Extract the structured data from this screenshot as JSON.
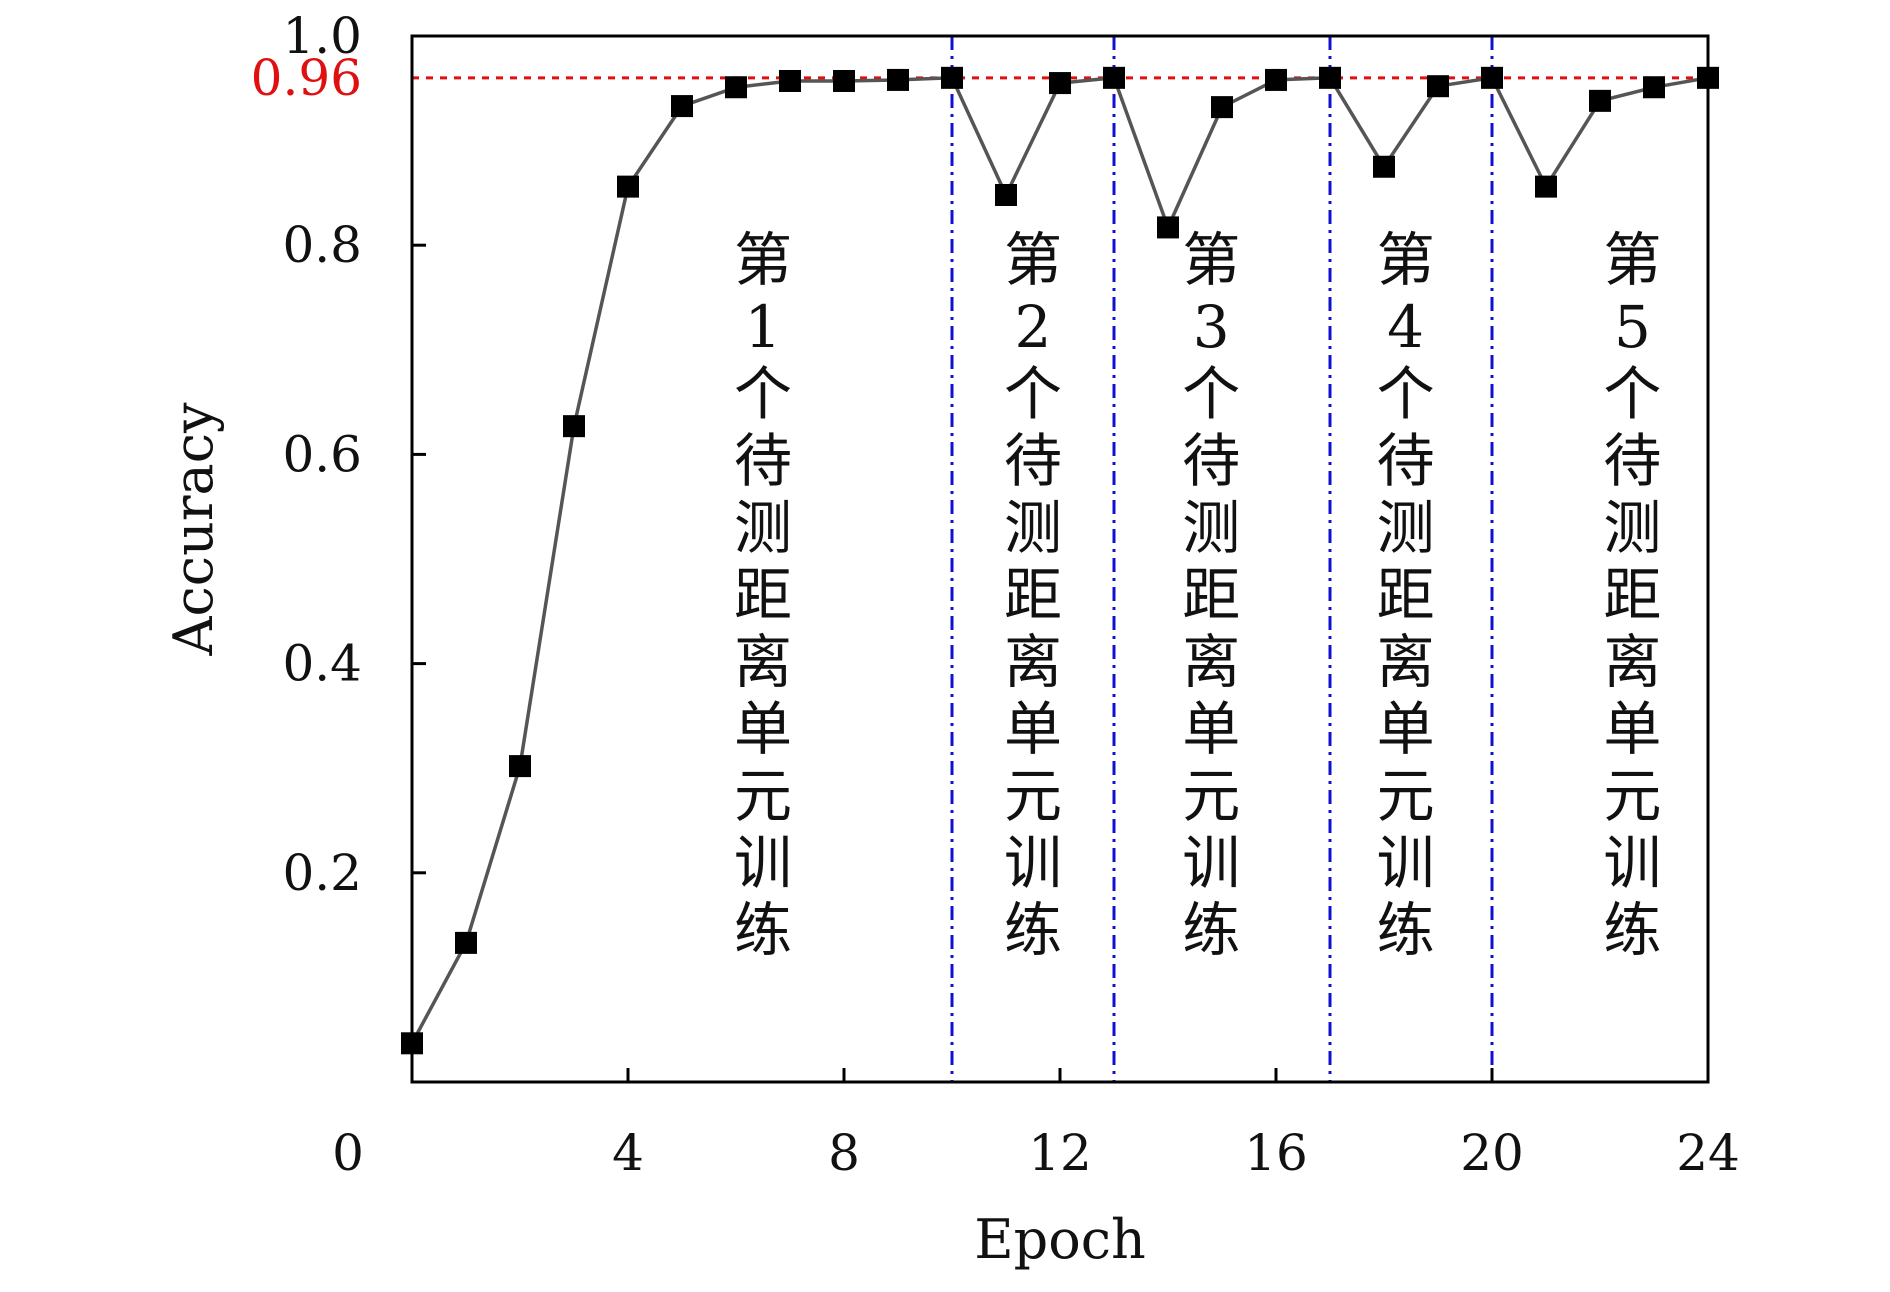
{
  "chart_data": {
    "type": "line",
    "xlabel": "Epoch",
    "ylabel": "Accuracy",
    "xlim": [
      0,
      24
    ],
    "ylim": [
      0,
      1.0
    ],
    "x_ticks": [
      "0",
      "4",
      "8",
      "12",
      "16",
      "20",
      "24"
    ],
    "y_ticks": [
      "0.2",
      "0.4",
      "0.6",
      "0.8",
      "1.0"
    ],
    "series": [
      {
        "marker": "square",
        "line_color": "#555555",
        "marker_color": "#000000",
        "x": [
          0,
          1,
          2,
          3,
          4,
          5,
          6,
          7,
          8,
          9,
          10,
          11,
          12,
          13,
          14,
          15,
          16,
          17,
          18,
          19,
          20,
          21,
          22,
          23,
          24
        ],
        "y": [
          0.037,
          0.133,
          0.302,
          0.627,
          0.856,
          0.933,
          0.951,
          0.957,
          0.957,
          0.958,
          0.96,
          0.848,
          0.955,
          0.96,
          0.817,
          0.932,
          0.958,
          0.96,
          0.875,
          0.952,
          0.96,
          0.856,
          0.938,
          0.951,
          0.96
        ]
      }
    ],
    "reference_line": {
      "y": 0.96,
      "label": "0.96",
      "color": "#e01010",
      "style": "dotted"
    },
    "vertical_lines": {
      "x": [
        10,
        13,
        17,
        20
      ],
      "color": "#1010d0",
      "style": "dash-dot"
    },
    "region_labels": [
      {
        "x": 6.5,
        "lines": [
          "第",
          "1",
          "个",
          "待",
          "测",
          "距",
          "离",
          "单",
          "元",
          "训",
          "练"
        ]
      },
      {
        "x": 11.5,
        "lines": [
          "第",
          "2",
          "个",
          "待",
          "测",
          "距",
          "离",
          "单",
          "元",
          "训",
          "练"
        ]
      },
      {
        "x": 14.8,
        "lines": [
          "第",
          "3",
          "个",
          "待",
          "测",
          "距",
          "离",
          "单",
          "元",
          "训",
          "练"
        ]
      },
      {
        "x": 18.4,
        "lines": [
          "第",
          "4",
          "个",
          "待",
          "测",
          "距",
          "离",
          "单",
          "元",
          "训",
          "练"
        ]
      },
      {
        "x": 22.6,
        "lines": [
          "第",
          "5",
          "个",
          "待",
          "测",
          "距",
          "离",
          "单",
          "元",
          "训",
          "练"
        ]
      }
    ],
    "grid": false,
    "legend": false
  }
}
